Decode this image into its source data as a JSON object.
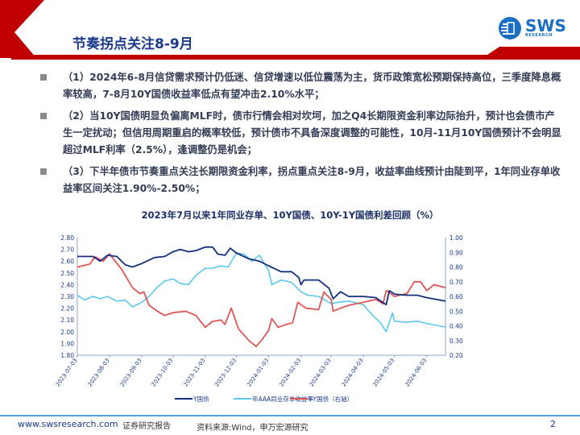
{
  "header": {
    "title": "节奏拐点关注8-9月",
    "logo_text": "SWS",
    "logo_sub": "RESEARCH"
  },
  "bullets": [
    "（1）2024年6-8月信贷需求预计仍低迷、信贷增速以低位震荡为主，货币政策宽松预期保持高位，三季度降息概率较高，7-8月10Y国债收益率低点有望冲击2.10%水平；",
    "（2）当10Y国债明显负偏离MLF时，债市行情会相对坎坷，加之Q4长期限资金利率边际抬升，预计也会债市产生一定扰动；但信用周期重启的概率较低，预计债市不具备深度调整的可能性，10月-11月10Y国债预计不会明显超过MLF利率（2.5%），逢调整仍是机会；",
    "（3）下半年债市节奏重点关注长期限资金利率，拐点重点关注8-9月，收益率曲线预计由陡到平，1年同业存单收益率区间关注1.90%-2.50%；"
  ],
  "footer": {
    "url": "www.swsresearch.com",
    "report": "证券研究报告",
    "source": "资料来源:Wind，申万宏源研究",
    "page": "2"
  },
  "colors": {
    "red": "#c00000",
    "navy": "#1b3a8c",
    "y10": "#12307f",
    "cd": "#5bc8f0",
    "spread": "#e05555"
  },
  "chart_data": {
    "type": "line",
    "title": "2023年7月以来1年同业存单、10Y国债、10Y-1Y国债利差回顾（%）",
    "ylim": [
      1.8,
      2.8
    ],
    "y2lim": [
      0.2,
      1.0
    ],
    "yticks": [
      "2.80",
      "2.70",
      "2.60",
      "2.50",
      "2.40",
      "2.30",
      "2.20",
      "2.10",
      "2.00",
      "1.90",
      "1.80"
    ],
    "y2ticks": [
      "1.00",
      "0.90",
      "0.80",
      "0.70",
      "0.60",
      "0.50",
      "0.40",
      "0.30",
      "0.20"
    ],
    "xticks": [
      "2023-07-03",
      "2023-08-03",
      "2023-09-03",
      "2023-10-03",
      "2023-11-03",
      "2023-12-03",
      "2024-01-03",
      "2024-02-03",
      "2024-03-03",
      "2024-04-03",
      "2024-05-03",
      "2024-06-03"
    ],
    "xrange": [
      "2023-07-03",
      "2024-06-21"
    ],
    "legend_position": "bottom",
    "series": [
      {
        "name": "Y国债",
        "axis": "left",
        "color": "#12307f",
        "points": [
          [
            "2023-07-03",
            2.64
          ],
          [
            "2023-07-18",
            2.64
          ],
          [
            "2023-07-25",
            2.6
          ],
          [
            "2023-08-01",
            2.65
          ],
          [
            "2023-08-10",
            2.64
          ],
          [
            "2023-08-18",
            2.57
          ],
          [
            "2023-08-25",
            2.55
          ],
          [
            "2023-09-03",
            2.58
          ],
          [
            "2023-09-15",
            2.63
          ],
          [
            "2023-09-25",
            2.64
          ],
          [
            "2023-10-03",
            2.68
          ],
          [
            "2023-10-10",
            2.7
          ],
          [
            "2023-10-18",
            2.68
          ],
          [
            "2023-10-25",
            2.69
          ],
          [
            "2023-11-03",
            2.72
          ],
          [
            "2023-11-10",
            2.72
          ],
          [
            "2023-11-15",
            2.66
          ],
          [
            "2023-11-22",
            2.65
          ],
          [
            "2023-11-27",
            2.71
          ],
          [
            "2023-12-03",
            2.67
          ],
          [
            "2023-12-15",
            2.62
          ],
          [
            "2023-12-25",
            2.6
          ],
          [
            "2024-01-03",
            2.56
          ],
          [
            "2024-01-15",
            2.51
          ],
          [
            "2024-01-25",
            2.51
          ],
          [
            "2024-02-01",
            2.46
          ],
          [
            "2024-02-03",
            2.4
          ],
          [
            "2024-02-06",
            2.44
          ],
          [
            "2024-02-20",
            2.44
          ],
          [
            "2024-03-01",
            2.37
          ],
          [
            "2024-03-05",
            2.28
          ],
          [
            "2024-03-12",
            2.34
          ],
          [
            "2024-03-20",
            2.3
          ],
          [
            "2024-04-03",
            2.3
          ],
          [
            "2024-04-15",
            2.29
          ],
          [
            "2024-04-25",
            2.23
          ],
          [
            "2024-04-28",
            2.35
          ],
          [
            "2024-05-03",
            2.32
          ],
          [
            "2024-05-15",
            2.31
          ],
          [
            "2024-05-25",
            2.31
          ],
          [
            "2024-06-03",
            2.29
          ],
          [
            "2024-06-21",
            2.26
          ]
        ]
      },
      {
        "name": "年AAA同业存单收益率",
        "axis": "left",
        "color": "#5bc8f0",
        "points": [
          [
            "2023-07-03",
            2.31
          ],
          [
            "2023-07-10",
            2.27
          ],
          [
            "2023-07-18",
            2.3
          ],
          [
            "2023-07-25",
            2.28
          ],
          [
            "2023-08-01",
            2.3
          ],
          [
            "2023-08-10",
            2.26
          ],
          [
            "2023-08-18",
            2.27
          ],
          [
            "2023-08-25",
            2.21
          ],
          [
            "2023-09-03",
            2.25
          ],
          [
            "2023-09-10",
            2.3
          ],
          [
            "2023-09-18",
            2.38
          ],
          [
            "2023-09-25",
            2.43
          ],
          [
            "2023-10-03",
            2.45
          ],
          [
            "2023-10-10",
            2.41
          ],
          [
            "2023-10-18",
            2.4
          ],
          [
            "2023-10-25",
            2.48
          ],
          [
            "2023-11-03",
            2.54
          ],
          [
            "2023-11-10",
            2.54
          ],
          [
            "2023-11-18",
            2.56
          ],
          [
            "2023-11-25",
            2.55
          ],
          [
            "2023-12-03",
            2.67
          ],
          [
            "2023-12-10",
            2.66
          ],
          [
            "2023-12-18",
            2.6
          ],
          [
            "2023-12-25",
            2.65
          ],
          [
            "2024-01-03",
            2.52
          ],
          [
            "2024-01-06",
            2.4
          ],
          [
            "2024-01-15",
            2.44
          ],
          [
            "2024-01-25",
            2.42
          ],
          [
            "2024-02-03",
            2.34
          ],
          [
            "2024-02-10",
            2.31
          ],
          [
            "2024-02-20",
            2.3
          ],
          [
            "2024-03-03",
            2.24
          ],
          [
            "2024-03-10",
            2.25
          ],
          [
            "2024-03-20",
            2.26
          ],
          [
            "2024-04-03",
            2.23
          ],
          [
            "2024-04-12",
            2.14
          ],
          [
            "2024-04-20",
            2.07
          ],
          [
            "2024-04-25",
            2.0
          ],
          [
            "2024-05-01",
            2.16
          ],
          [
            "2024-05-03",
            2.09
          ],
          [
            "2024-05-15",
            2.08
          ],
          [
            "2024-05-25",
            2.09
          ],
          [
            "2024-06-03",
            2.07
          ],
          [
            "2024-06-21",
            2.04
          ]
        ]
      },
      {
        "name": "Y-Y国债（右轴）",
        "axis": "right",
        "color": "#e05555",
        "points": [
          [
            "2023-07-03",
            0.8
          ],
          [
            "2023-07-15",
            0.82
          ],
          [
            "2023-07-20",
            0.87
          ],
          [
            "2023-07-28",
            0.84
          ],
          [
            "2023-08-03",
            0.89
          ],
          [
            "2023-08-15",
            0.78
          ],
          [
            "2023-08-25",
            0.66
          ],
          [
            "2023-09-01",
            0.62
          ],
          [
            "2023-09-05",
            0.63
          ],
          [
            "2023-09-10",
            0.54
          ],
          [
            "2023-09-18",
            0.5
          ],
          [
            "2023-09-25",
            0.47
          ],
          [
            "2023-10-03",
            0.49
          ],
          [
            "2023-10-15",
            0.5
          ],
          [
            "2023-10-25",
            0.47
          ],
          [
            "2023-11-03",
            0.39
          ],
          [
            "2023-11-10",
            0.43
          ],
          [
            "2023-11-18",
            0.44
          ],
          [
            "2023-11-22",
            0.41
          ],
          [
            "2023-11-28",
            0.52
          ],
          [
            "2023-12-05",
            0.38
          ],
          [
            "2023-12-15",
            0.3
          ],
          [
            "2023-12-22",
            0.26
          ],
          [
            "2023-12-28",
            0.31
          ],
          [
            "2024-01-03",
            0.37
          ],
          [
            "2024-01-06",
            0.45
          ],
          [
            "2024-01-12",
            0.39
          ],
          [
            "2024-01-20",
            0.41
          ],
          [
            "2024-01-26",
            0.42
          ],
          [
            "2024-01-31",
            0.56
          ],
          [
            "2024-02-08",
            0.52
          ],
          [
            "2024-02-20",
            0.51
          ],
          [
            "2024-02-25",
            0.63
          ],
          [
            "2024-03-03",
            0.58
          ],
          [
            "2024-03-05",
            0.5
          ],
          [
            "2024-03-12",
            0.52
          ],
          [
            "2024-03-20",
            0.54
          ],
          [
            "2024-04-03",
            0.56
          ],
          [
            "2024-04-15",
            0.58
          ],
          [
            "2024-04-22",
            0.55
          ],
          [
            "2024-04-25",
            0.64
          ],
          [
            "2024-05-03",
            0.6
          ],
          [
            "2024-05-15",
            0.62
          ],
          [
            "2024-05-22",
            0.7
          ],
          [
            "2024-05-28",
            0.7
          ],
          [
            "2024-06-03",
            0.64
          ],
          [
            "2024-06-10",
            0.68
          ],
          [
            "2024-06-21",
            0.66
          ]
        ]
      }
    ]
  }
}
